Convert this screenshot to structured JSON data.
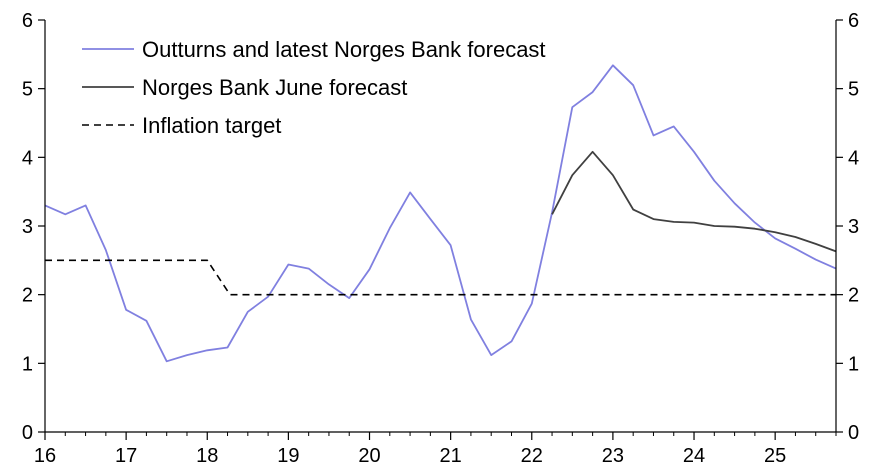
{
  "chart_data": {
    "type": "line",
    "title": "",
    "xlabel": "",
    "ylabel": "",
    "x_tick_labels": [
      "16",
      "17",
      "18",
      "19",
      "20",
      "21",
      "22",
      "23",
      "24",
      "25"
    ],
    "x_range": [
      2016,
      2025.75
    ],
    "ylim": [
      0,
      6
    ],
    "y_ticks": [
      0,
      1,
      2,
      3,
      4,
      5,
      6
    ],
    "y_tick_labels_left": [
      "0",
      "1",
      "2",
      "3",
      "4",
      "5",
      "6"
    ],
    "y_tick_labels_right": [
      "0",
      "1",
      "2",
      "3",
      "4",
      "5",
      "6"
    ],
    "grid": false,
    "legend_placement": "top-left",
    "series": [
      {
        "name": "Outturns and latest Norges Bank forecast",
        "color": "#8080e0",
        "style": "solid",
        "x": [
          2016.0,
          2016.25,
          2016.5,
          2016.75,
          2017.0,
          2017.25,
          2017.5,
          2017.75,
          2018.0,
          2018.25,
          2018.5,
          2018.75,
          2019.0,
          2019.25,
          2019.5,
          2019.75,
          2020.0,
          2020.25,
          2020.5,
          2020.75,
          2021.0,
          2021.25,
          2021.5,
          2021.75,
          2022.0,
          2022.25,
          2022.5,
          2022.75,
          2023.0,
          2023.25,
          2023.5,
          2023.75,
          2024.0,
          2024.25,
          2024.5,
          2024.75,
          2025.0,
          2025.25,
          2025.5,
          2025.75
        ],
        "values": [
          3.3,
          3.17,
          3.3,
          2.65,
          1.78,
          1.62,
          1.03,
          1.12,
          1.19,
          1.23,
          1.75,
          1.97,
          2.44,
          2.38,
          2.15,
          1.95,
          2.37,
          2.97,
          3.49,
          3.1,
          2.72,
          1.64,
          1.12,
          1.32,
          1.87,
          3.2,
          4.73,
          4.95,
          5.34,
          5.05,
          4.32,
          4.45,
          4.08,
          3.66,
          3.33,
          3.05,
          2.82,
          2.67,
          2.51,
          2.38
        ]
      },
      {
        "name": "Norges Bank June forecast",
        "color": "#404040",
        "style": "solid",
        "x": [
          2022.25,
          2022.5,
          2022.75,
          2023.0,
          2023.25,
          2023.5,
          2023.75,
          2024.0,
          2024.25,
          2024.5,
          2024.75,
          2025.0,
          2025.25,
          2025.5,
          2025.75
        ],
        "values": [
          3.17,
          3.74,
          4.08,
          3.74,
          3.24,
          3.1,
          3.06,
          3.05,
          3.0,
          2.99,
          2.96,
          2.91,
          2.84,
          2.74,
          2.63
        ]
      },
      {
        "name": "Inflation target",
        "color": "#000000",
        "style": "dashed",
        "x": [
          2016.0,
          2018.0,
          2018.28,
          2025.75
        ],
        "values": [
          2.5,
          2.5,
          2.0,
          2.0
        ]
      }
    ]
  }
}
